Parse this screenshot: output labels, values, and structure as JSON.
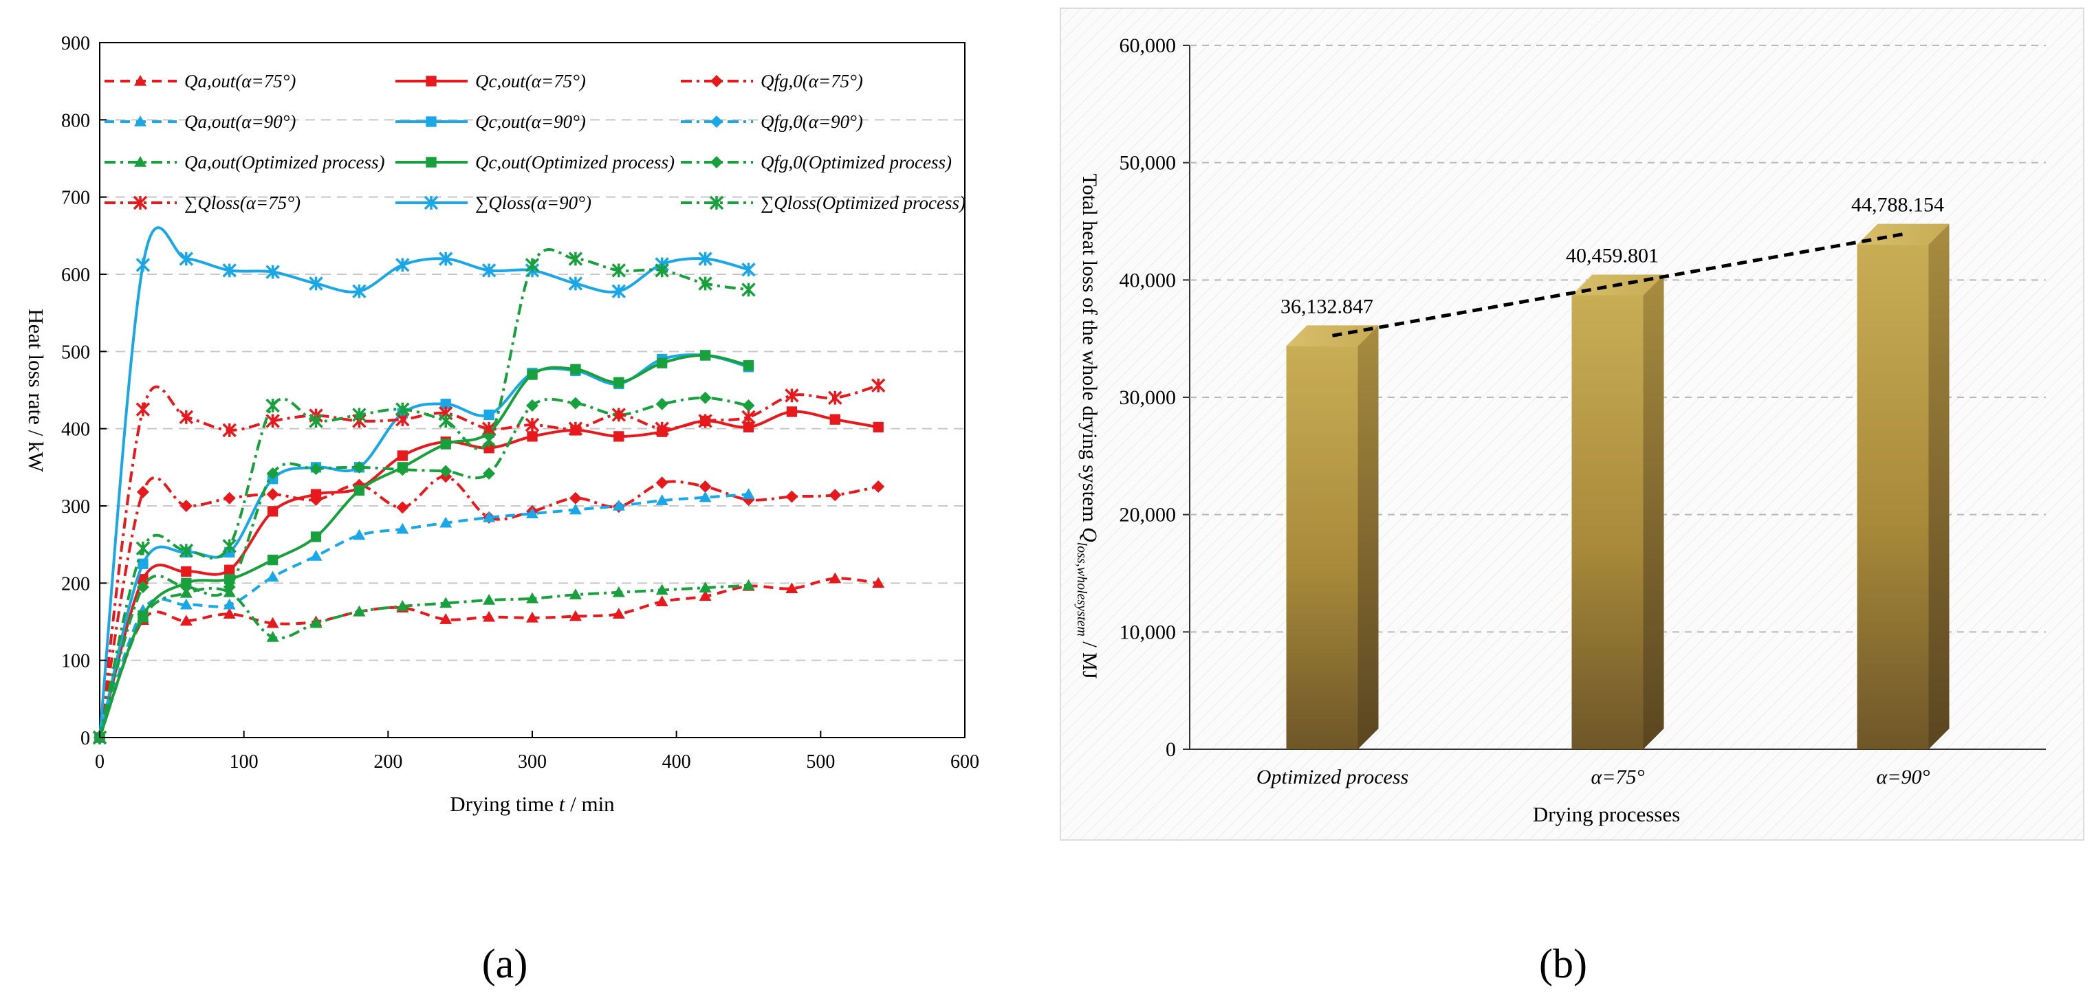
{
  "chart_data": [
    {
      "type": "line",
      "panel_label": "(a)",
      "xlabel_parts": [
        "Drying time ",
        "t",
        " / min"
      ],
      "ylabel": "Heat loss rate / kW",
      "xlim": [
        0,
        600
      ],
      "ylim": [
        0,
        900
      ],
      "xticks": [
        0,
        100,
        200,
        300,
        400,
        500,
        600
      ],
      "yticks": [
        0,
        100,
        200,
        300,
        400,
        500,
        600,
        700,
        800,
        900
      ],
      "grid": "horizontal-dashed",
      "legend_position": "top",
      "series": [
        {
          "name": "Qa,out(α=75°)",
          "color": "#e8191c",
          "dash": "dashed",
          "marker": "triangle",
          "x": [
            0,
            30,
            60,
            90,
            120,
            150,
            180,
            210,
            240,
            270,
            300,
            330,
            360,
            390,
            420,
            450,
            480,
            510,
            540
          ],
          "y": [
            0,
            152,
            151,
            160,
            148,
            150,
            163,
            168,
            153,
            156,
            155,
            157,
            160,
            176,
            183,
            196,
            193,
            206,
            200
          ]
        },
        {
          "name": "Qc,out(α=75°)",
          "color": "#e8191c",
          "dash": "solid",
          "marker": "square",
          "x": [
            0,
            30,
            60,
            90,
            120,
            150,
            180,
            210,
            240,
            270,
            300,
            330,
            360,
            390,
            420,
            450,
            480,
            510,
            540
          ],
          "y": [
            0,
            205,
            215,
            217,
            293,
            315,
            323,
            365,
            383,
            375,
            390,
            398,
            390,
            396,
            410,
            402,
            422,
            412,
            402
          ]
        },
        {
          "name": "Qfg,0(α=75°)",
          "color": "#e8191c",
          "dash": "dashdot",
          "marker": "diamond",
          "x": [
            0,
            30,
            60,
            90,
            120,
            150,
            180,
            210,
            240,
            270,
            300,
            330,
            360,
            390,
            420,
            450,
            480,
            510,
            540
          ],
          "y": [
            0,
            318,
            300,
            310,
            315,
            308,
            327,
            298,
            338,
            285,
            293,
            310,
            299,
            330,
            325,
            308,
            312,
            314,
            325
          ]
        },
        {
          "name": "Qa,out(α=90°)",
          "color": "#1aa7e8",
          "dash": "dashed",
          "marker": "triangle",
          "x": [
            0,
            30,
            60,
            90,
            120,
            150,
            180,
            210,
            240,
            270,
            300,
            330,
            360,
            390,
            420,
            450
          ],
          "y": [
            0,
            165,
            172,
            172,
            208,
            235,
            262,
            270,
            278,
            285,
            290,
            295,
            300,
            307,
            311,
            315
          ]
        },
        {
          "name": "Qc,out(α=90°)",
          "color": "#1aa7e8",
          "dash": "solid",
          "marker": "square",
          "x": [
            0,
            30,
            60,
            90,
            120,
            150,
            180,
            210,
            240,
            270,
            300,
            330,
            360,
            390,
            420,
            450
          ],
          "y": [
            0,
            225,
            240,
            240,
            335,
            350,
            350,
            420,
            432,
            418,
            472,
            475,
            458,
            490,
            495,
            480
          ]
        },
        {
          "name": "Qfg,0(α=90°)",
          "color": "#1aa7e8",
          "dash": "dashdot",
          "marker": "diamond",
          "x": [],
          "y": []
        },
        {
          "name": "Qa,out(Optimized process)",
          "color": "#18a03c",
          "dash": "dashdot",
          "marker": "triangle",
          "x": [
            0,
            30,
            60,
            90,
            120,
            150,
            180,
            210,
            240,
            270,
            300,
            330,
            360,
            390,
            420,
            450
          ],
          "y": [
            0,
            155,
            187,
            188,
            130,
            148,
            163,
            170,
            174,
            178,
            180,
            185,
            188,
            191,
            194,
            197
          ]
        },
        {
          "name": "Qc,out(Optimized process)",
          "color": "#18a03c",
          "dash": "solid",
          "marker": "square",
          "x": [
            0,
            30,
            60,
            90,
            120,
            150,
            180,
            210,
            240,
            270,
            300,
            330,
            360,
            390,
            420,
            450
          ],
          "y": [
            0,
            158,
            200,
            205,
            230,
            260,
            320,
            350,
            380,
            395,
            470,
            477,
            460,
            485,
            495,
            482
          ]
        },
        {
          "name": "Qfg,0(Optimized process)",
          "color": "#18a03c",
          "dash": "dashdot",
          "marker": "diamond",
          "x": [
            0,
            30,
            60,
            90,
            120,
            150,
            180,
            210,
            240,
            270,
            300,
            330,
            360,
            390,
            420,
            450
          ],
          "y": [
            0,
            195,
            195,
            195,
            342,
            348,
            350,
            347,
            345,
            342,
            430,
            433,
            418,
            432,
            440,
            430
          ]
        },
        {
          "name": "∑Qloss(α=75°)",
          "color": "#e8191c",
          "dash": "dashdot",
          "marker": "x",
          "x": [
            0,
            30,
            60,
            90,
            120,
            150,
            180,
            210,
            240,
            270,
            300,
            330,
            360,
            390,
            420,
            450,
            480,
            510,
            540
          ],
          "y": [
            0,
            425,
            415,
            398,
            410,
            417,
            410,
            412,
            420,
            400,
            405,
            400,
            418,
            400,
            410,
            415,
            443,
            440,
            456
          ]
        },
        {
          "name": "∑Qloss(α=90°)",
          "color": "#1aa7e8",
          "dash": "solid",
          "marker": "x",
          "x": [
            0,
            30,
            60,
            90,
            120,
            150,
            180,
            210,
            240,
            270,
            300,
            330,
            360,
            390,
            420,
            450
          ],
          "y": [
            0,
            612,
            620,
            605,
            603,
            588,
            578,
            612,
            620,
            605,
            605,
            588,
            578,
            613,
            620,
            606
          ]
        },
        {
          "name": "∑Qloss(Optimized process)",
          "color": "#18a03c",
          "dash": "dashdot",
          "marker": "x",
          "x": [
            0,
            30,
            60,
            90,
            120,
            150,
            180,
            210,
            240,
            270,
            300,
            330,
            360,
            390,
            420,
            450
          ],
          "y": [
            0,
            245,
            242,
            248,
            430,
            410,
            418,
            425,
            410,
            385,
            612,
            620,
            605,
            605,
            588,
            580
          ]
        }
      ]
    },
    {
      "type": "bar",
      "style": "3d",
      "panel_label": "(b)",
      "xlabel": "Drying processes",
      "ylabel_parts": [
        "Total heat loss of the whole drying system ",
        "Q",
        "loss,wholesystem",
        " / MJ"
      ],
      "categories": [
        "Optimized process",
        "α=75°",
        "α=90°"
      ],
      "values": [
        36132.847,
        40459.801,
        44788.154
      ],
      "value_labels": [
        "36,132.847",
        "40,459.801",
        "44,788.154"
      ],
      "ylim": [
        0,
        60000
      ],
      "yticks": [
        0,
        10000,
        20000,
        30000,
        40000,
        50000,
        60000
      ],
      "ytick_labels": [
        "0",
        "10,000",
        "20,000",
        "30,000",
        "40,000",
        "50,000",
        "60,000"
      ],
      "grid": "horizontal-dashed",
      "trend_line": "dashed",
      "bar_color": "#c9aa4f"
    }
  ]
}
